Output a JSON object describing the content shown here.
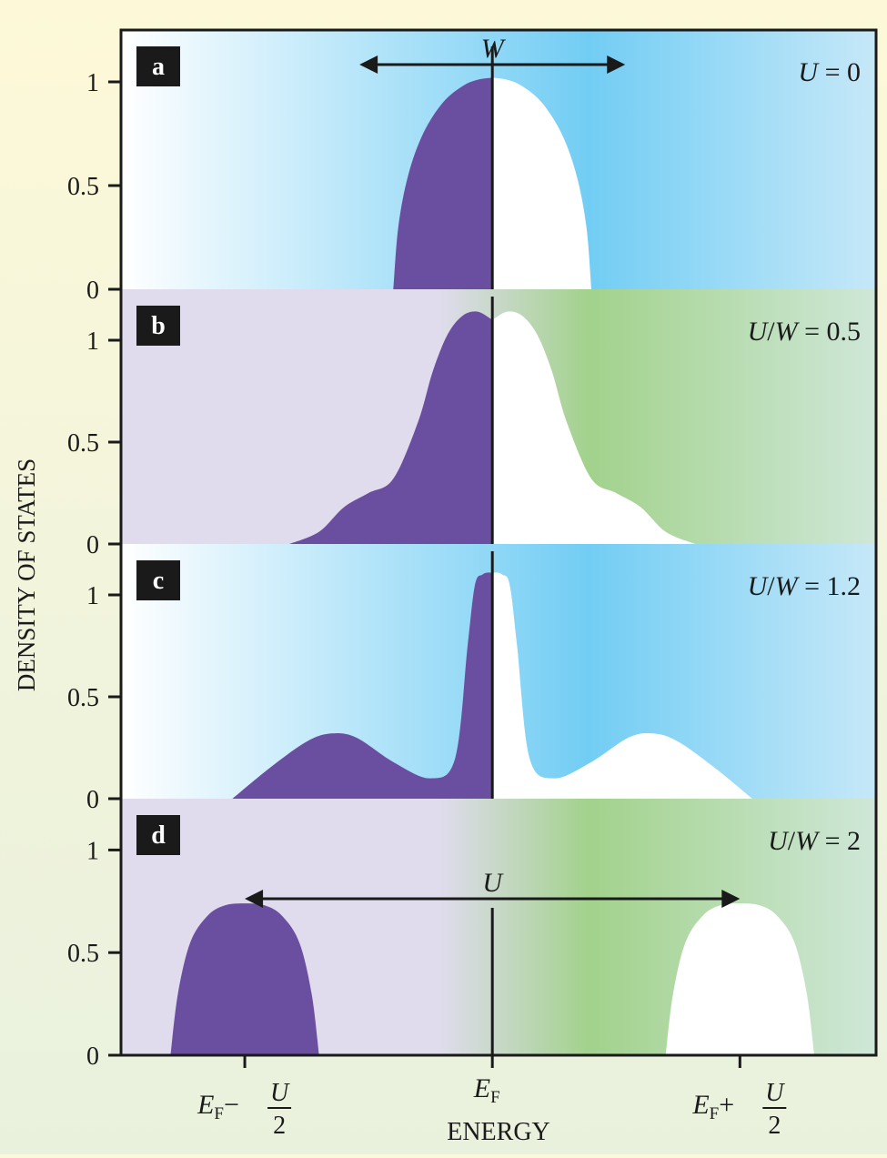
{
  "chart_data": [
    {
      "type": "area",
      "panel": "a",
      "annotation": "U = 0",
      "width_label": "W",
      "width_range": [
        -0.5,
        0.5
      ],
      "x": [
        -0.4,
        -0.38,
        -0.34,
        -0.28,
        -0.2,
        -0.12,
        -0.06,
        0,
        0.06,
        0.12,
        0.2,
        0.28,
        0.34,
        0.38,
        0.4
      ],
      "y": [
        0,
        0.3,
        0.55,
        0.75,
        0.9,
        0.98,
        1.01,
        1.02,
        1.01,
        0.98,
        0.9,
        0.75,
        0.55,
        0.3,
        0
      ],
      "ylim": [
        0,
        1.25
      ],
      "yticks": [
        "0",
        "0.5",
        "1"
      ],
      "filled_side": "left",
      "filled_color": "#6a4fa0",
      "empty_color": "#ffffff",
      "background": [
        "#ffffff",
        "#72cdf4",
        "#c6e8f8"
      ]
    },
    {
      "type": "area",
      "panel": "b",
      "annotation": "U/W = 0.5",
      "x": [
        -0.82,
        -0.7,
        -0.6,
        -0.5,
        -0.4,
        -0.3,
        -0.24,
        -0.18,
        -0.12,
        -0.06,
        0,
        0.06,
        0.12,
        0.18,
        0.24,
        0.3,
        0.4,
        0.5,
        0.6,
        0.7,
        0.82
      ],
      "y": [
        0,
        0.06,
        0.18,
        0.25,
        0.32,
        0.6,
        0.85,
        1.03,
        1.12,
        1.14,
        1.1,
        1.14,
        1.12,
        1.03,
        0.85,
        0.6,
        0.32,
        0.25,
        0.18,
        0.06,
        0
      ],
      "ylim": [
        0,
        1.25
      ],
      "yticks": [
        "0",
        "0.5",
        "1"
      ],
      "filled_side": "left",
      "filled_color": "#6a4fa0",
      "empty_color": "#ffffff",
      "background": [
        "#e0dcee",
        "#a2d28c",
        "#cfe7d8"
      ]
    },
    {
      "type": "area",
      "panel": "c",
      "annotation": "U/W = 1.2",
      "x": [
        -1.05,
        -0.9,
        -0.75,
        -0.65,
        -0.55,
        -0.4,
        -0.25,
        -0.15,
        -0.1,
        -0.07,
        -0.04,
        -0.01,
        0,
        0.01,
        0.04,
        0.07,
        0.1,
        0.15,
        0.25,
        0.4,
        0.55,
        0.65,
        0.75,
        0.9,
        1.05
      ],
      "y": [
        0,
        0.15,
        0.28,
        0.32,
        0.3,
        0.18,
        0.1,
        0.2,
        0.75,
        1.05,
        1.1,
        1.11,
        1.1,
        1.11,
        1.1,
        1.05,
        0.75,
        0.2,
        0.1,
        0.18,
        0.3,
        0.32,
        0.28,
        0.15,
        0
      ],
      "ylim": [
        0,
        1.25
      ],
      "yticks": [
        "0",
        "0.5",
        "1"
      ],
      "filled_side": "left",
      "filled_color": "#6a4fa0",
      "empty_color": "#ffffff",
      "background": [
        "#ffffff",
        "#72cdf4",
        "#c6e8f8"
      ]
    },
    {
      "type": "area",
      "panel": "d",
      "annotation": "U/W = 2",
      "gap_label": "U",
      "gap_range": [
        -1,
        1
      ],
      "x": [
        -1.3,
        -1.27,
        -1.22,
        -1.15,
        -1.08,
        -1.0,
        -0.92,
        -0.85,
        -0.78,
        -0.73,
        -0.7
      ],
      "y": [
        0,
        0.3,
        0.55,
        0.68,
        0.73,
        0.74,
        0.73,
        0.68,
        0.55,
        0.3,
        0
      ],
      "mirror": true,
      "ylim": [
        0,
        1.25
      ],
      "yticks": [
        "0",
        "0.5",
        "1"
      ],
      "filled_side": "left",
      "filled_color": "#6a4fa0",
      "empty_color": "#ffffff",
      "background": [
        "#e0dcee",
        "#a2d28c",
        "#cfe7d8"
      ]
    }
  ],
  "axes": {
    "ylabel": "DENSITY OF STATES",
    "xlabel": "ENERGY",
    "xticks": {
      "left": {
        "base": "E",
        "sub": "F",
        "op": "−",
        "num": "U",
        "den": "2",
        "at": -1
      },
      "center": {
        "base": "E",
        "sub": "F",
        "at": 0
      },
      "right": {
        "base": "E",
        "sub": "F",
        "op": "+",
        "num": "U",
        "den": "2",
        "at": 1
      }
    },
    "xlim": [
      -1.5,
      1.55
    ]
  }
}
